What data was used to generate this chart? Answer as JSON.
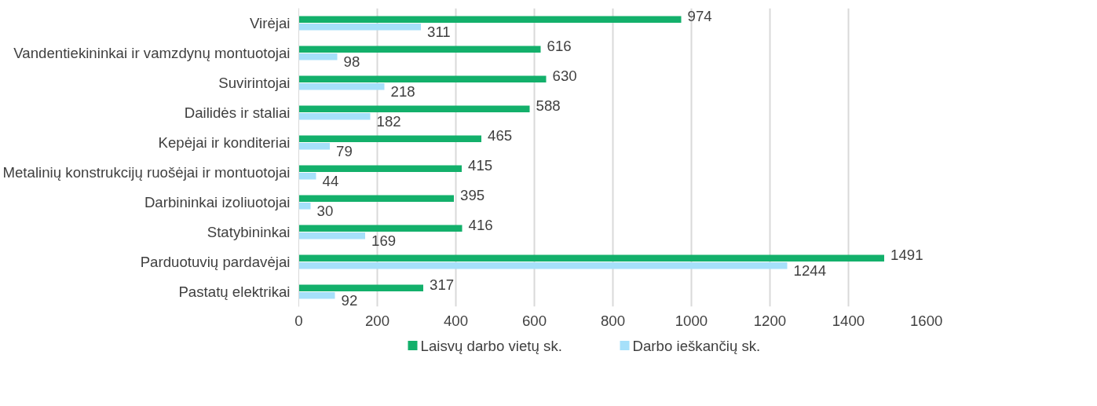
{
  "chart_data": {
    "type": "bar",
    "orientation": "horizontal",
    "categories": [
      "Virėjai",
      "Vandentiekininkai ir vamzdynų montuotojai",
      "Suvirintojai",
      "Dailidės ir staliai",
      "Kepėjai ir konditeriai",
      "Metalinių konstrukcijų ruošėjai ir montuotojai",
      "Darbininkai izoliuotojai",
      "Statybininkai",
      "Parduotuvių pardavėjai",
      "Pastatų elektrikai"
    ],
    "series": [
      {
        "name": "Laisvų darbo vietų sk.",
        "color": "#13b06b",
        "values": [
          974,
          616,
          630,
          588,
          465,
          415,
          395,
          416,
          1491,
          317
        ]
      },
      {
        "name": "Darbo ieškančių sk.",
        "color": "#a6e0fa",
        "values": [
          311,
          98,
          218,
          182,
          79,
          44,
          30,
          169,
          1244,
          92
        ]
      }
    ],
    "xlim": [
      0,
      1600
    ],
    "xticks": [
      0,
      200,
      400,
      600,
      800,
      1000,
      1200,
      1400,
      1600
    ],
    "grid": "x",
    "legend": "bottom",
    "data_labels": true
  }
}
